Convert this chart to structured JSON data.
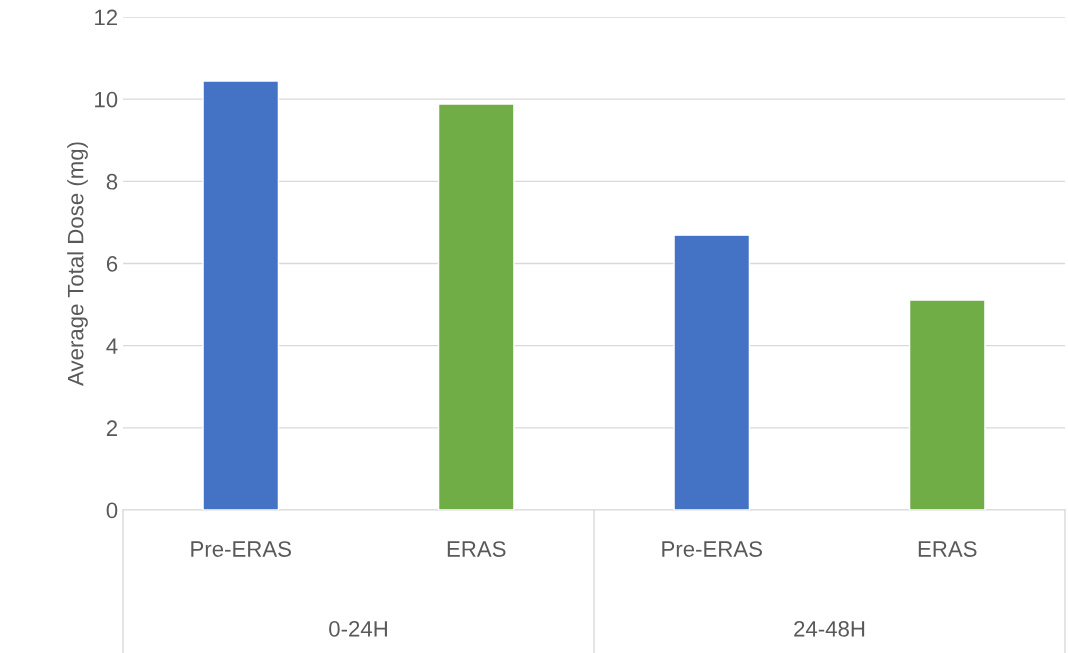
{
  "chart_data": {
    "type": "bar",
    "ylabel": "Average Total Dose (mg)",
    "categories": [
      "Pre-ERAS",
      "ERAS",
      "Pre-ERAS",
      "ERAS"
    ],
    "values": [
      10.44,
      9.88,
      6.69,
      5.11
    ],
    "colors": [
      "#4472c4",
      "#70ad47",
      "#4472c4",
      "#70ad47"
    ],
    "annotations": [
      "0-24H",
      "24-48H"
    ],
    "ylim": [
      0,
      12
    ],
    "yticks": [
      0,
      2,
      4,
      6,
      8,
      10,
      12
    ],
    "grid": "y",
    "legend": false
  }
}
